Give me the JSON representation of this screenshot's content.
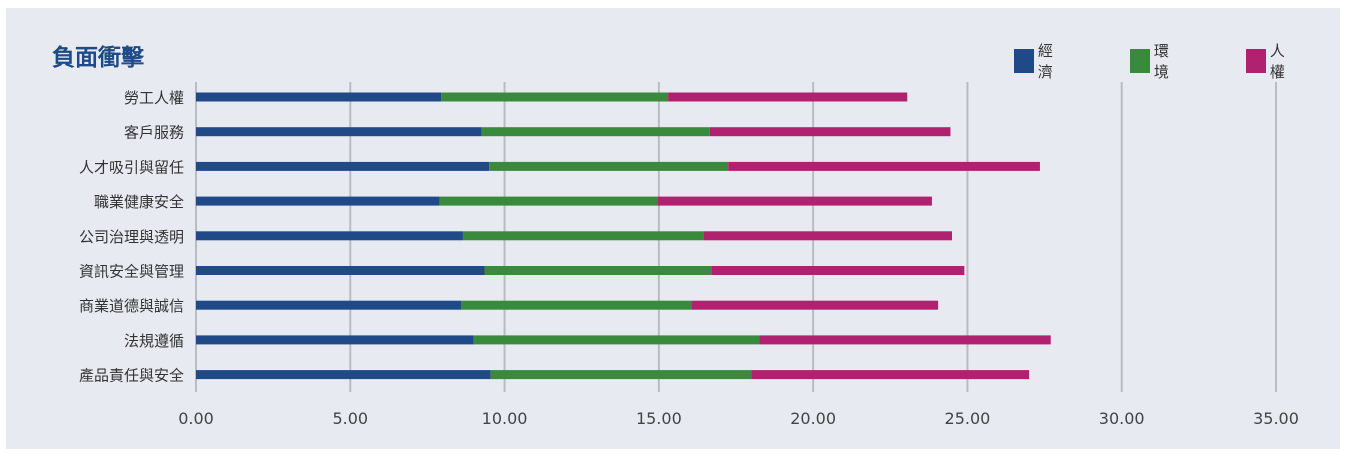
{
  "chart_data": {
    "type": "bar",
    "orientation": "horizontal",
    "stacked": true,
    "title": "負面衝擊",
    "categories": [
      "勞工人權",
      "客戶服務",
      "人才吸引與留任",
      "職業健康安全",
      "公司治理與透明",
      "資訊安全與管理",
      "商業道德與誠信",
      "法規遵循",
      "產品責任與安全"
    ],
    "series": [
      {
        "name": "經濟",
        "color": "#1f4a87",
        "values": [
          7.95,
          9.25,
          9.5,
          7.9,
          8.65,
          9.35,
          8.6,
          9.0,
          9.55
        ]
      },
      {
        "name": "環境",
        "color": "#3a8a3e",
        "values": [
          7.35,
          7.4,
          7.75,
          7.05,
          7.8,
          7.35,
          7.45,
          9.25,
          8.45
        ]
      },
      {
        "name": "人權",
        "color": "#b0216f",
        "values": [
          7.75,
          7.8,
          10.1,
          8.9,
          8.05,
          8.2,
          8.0,
          9.45,
          9.0
        ]
      }
    ],
    "xlim": [
      0,
      35
    ],
    "xticks": [
      "0.00",
      "5.00",
      "10.00",
      "15.00",
      "20.00",
      "25.00",
      "30.00",
      "35.00"
    ],
    "grid": true,
    "legend_position": "top-right"
  }
}
